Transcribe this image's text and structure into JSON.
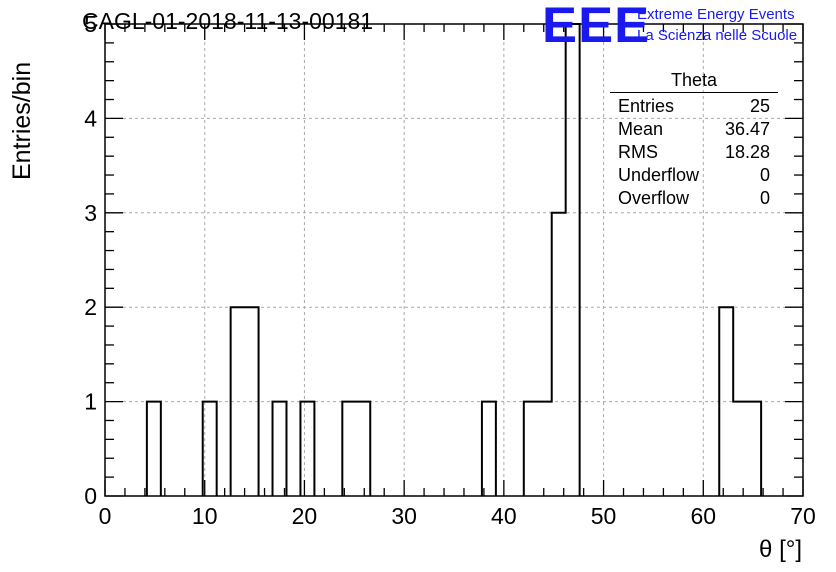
{
  "header": {
    "title": "CAGL-01-2018-11-13-00181",
    "logo": "EEE",
    "logo_line1": "Extreme Energy Events",
    "logo_line2": "La Scienza nelle Scuole"
  },
  "stats_box": {
    "title": "Theta",
    "rows": [
      {
        "label": "Entries",
        "value": "25"
      },
      {
        "label": "Mean",
        "value": "36.47"
      },
      {
        "label": "RMS",
        "value": "18.28"
      },
      {
        "label": "Underflow",
        "value": "0"
      },
      {
        "label": "Overflow",
        "value": "0"
      }
    ]
  },
  "chart_data": {
    "type": "bar",
    "histogram": true,
    "xlabel": "θ [°]",
    "ylabel": "Entries/bin",
    "xlim": [
      0,
      70
    ],
    "ylim": [
      0,
      5
    ],
    "xticks": [
      0,
      10,
      20,
      30,
      40,
      50,
      60,
      70
    ],
    "yticks": [
      0,
      1,
      2,
      3,
      4,
      5
    ],
    "grid": true,
    "bin_width": 1.4,
    "bins": [
      {
        "x0": 4.2,
        "count": 1
      },
      {
        "x0": 9.8,
        "count": 1
      },
      {
        "x0": 12.6,
        "count": 2
      },
      {
        "x0": 14.0,
        "count": 2
      },
      {
        "x0": 16.8,
        "count": 1
      },
      {
        "x0": 19.6,
        "count": 1
      },
      {
        "x0": 23.8,
        "count": 1
      },
      {
        "x0": 25.2,
        "count": 1
      },
      {
        "x0": 37.8,
        "count": 1
      },
      {
        "x0": 42.0,
        "count": 1
      },
      {
        "x0": 43.4,
        "count": 1
      },
      {
        "x0": 44.8,
        "count": 3
      },
      {
        "x0": 46.2,
        "count": 5
      },
      {
        "x0": 61.6,
        "count": 2
      },
      {
        "x0": 63.0,
        "count": 1
      },
      {
        "x0": 64.4,
        "count": 1
      }
    ]
  }
}
